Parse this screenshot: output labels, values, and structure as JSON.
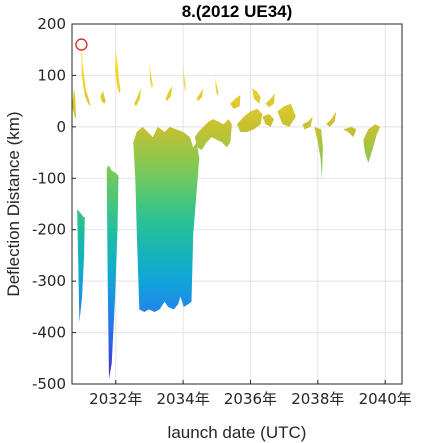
{
  "chart_data": {
    "type": "area",
    "title": "8.(2012 UE34)",
    "xlabel": "launch date (UTC)",
    "ylabel": "Deflection Distance (km)",
    "xlim": [
      2030.7,
      2040.5
    ],
    "ylim": [
      -500,
      200
    ],
    "x_ticks": [
      2032,
      2034,
      2036,
      2038,
      2040
    ],
    "x_tick_labels": [
      "2032年",
      "2034年",
      "2036年",
      "2038年",
      "2040年"
    ],
    "y_ticks": [
      200,
      100,
      0,
      -100,
      -200,
      -300,
      -400,
      -500
    ],
    "y_tick_labels": [
      "200",
      "100",
      "0",
      "-100",
      "-200",
      "-300",
      "-400",
      "-500"
    ],
    "grid": true,
    "colormap": [
      "#3e26a8",
      "#2d6ef7",
      "#11a5d9",
      "#1cbf9f",
      "#6ccb5f",
      "#c8c030",
      "#f3d52c",
      "#f9fb15"
    ],
    "color_range": [
      -500,
      200
    ],
    "segments": [
      {
        "points": [
          [
            2030.7,
            40
          ],
          [
            2030.76,
            75
          ],
          [
            2030.8,
            55
          ],
          [
            2030.82,
            15
          ],
          [
            2030.78,
            20
          ],
          [
            2030.72,
            35
          ]
        ]
      },
      {
        "points": [
          [
            2030.97,
            165
          ],
          [
            2031.02,
            120
          ],
          [
            2031.12,
            70
          ],
          [
            2031.2,
            55
          ],
          [
            2031.25,
            40
          ],
          [
            2031.18,
            45
          ],
          [
            2031.08,
            60
          ],
          [
            2030.99,
            100
          ]
        ]
      },
      {
        "points": [
          [
            2031.55,
            60
          ],
          [
            2031.62,
            70
          ],
          [
            2031.7,
            50
          ],
          [
            2031.66,
            45
          ],
          [
            2031.58,
            50
          ]
        ]
      },
      {
        "points": [
          [
            2032.0,
            150
          ],
          [
            2032.06,
            120
          ],
          [
            2032.1,
            90
          ],
          [
            2032.14,
            70
          ],
          [
            2032.1,
            65
          ],
          [
            2032.04,
            80
          ],
          [
            2031.98,
            110
          ]
        ]
      },
      {
        "points": [
          [
            2032.55,
            45
          ],
          [
            2032.65,
            60
          ],
          [
            2032.75,
            75
          ],
          [
            2032.72,
            55
          ],
          [
            2032.6,
            40
          ]
        ]
      },
      {
        "points": [
          [
            2033.0,
            125
          ],
          [
            2033.05,
            100
          ],
          [
            2033.1,
            80
          ],
          [
            2033.07,
            75
          ],
          [
            2033.02,
            90
          ]
        ]
      },
      {
        "points": [
          [
            2033.48,
            55
          ],
          [
            2033.58,
            70
          ],
          [
            2033.68,
            80
          ],
          [
            2033.64,
            60
          ],
          [
            2033.52,
            50
          ]
        ]
      },
      {
        "points": [
          [
            2034.0,
            115
          ],
          [
            2034.04,
            95
          ],
          [
            2034.08,
            75
          ],
          [
            2034.06,
            70
          ],
          [
            2034.02,
            85
          ]
        ]
      },
      {
        "points": [
          [
            2034.4,
            55
          ],
          [
            2034.5,
            65
          ],
          [
            2034.6,
            75
          ],
          [
            2034.56,
            58
          ],
          [
            2034.45,
            50
          ]
        ]
      },
      {
        "points": [
          [
            2034.95,
            95
          ],
          [
            2035.0,
            80
          ],
          [
            2035.05,
            65
          ],
          [
            2035.02,
            60
          ],
          [
            2034.97,
            72
          ]
        ]
      },
      {
        "points": [
          [
            2035.4,
            45
          ],
          [
            2035.55,
            55
          ],
          [
            2035.7,
            62
          ],
          [
            2035.68,
            40
          ],
          [
            2035.5,
            35
          ]
        ]
      },
      {
        "points": [
          [
            2036.05,
            75
          ],
          [
            2036.2,
            68
          ],
          [
            2036.3,
            58
          ],
          [
            2036.26,
            45
          ],
          [
            2036.1,
            55
          ]
        ]
      },
      {
        "points": [
          [
            2036.45,
            45
          ],
          [
            2036.6,
            55
          ],
          [
            2036.72,
            65
          ],
          [
            2036.7,
            45
          ],
          [
            2036.55,
            38
          ]
        ]
      },
      {
        "points": [
          [
            2030.85,
            -160
          ],
          [
            2030.92,
            -165
          ],
          [
            2030.98,
            -170
          ],
          [
            2031.04,
            -175
          ],
          [
            2031.08,
            -175
          ],
          [
            2031.06,
            -250
          ],
          [
            2031.0,
            -330
          ],
          [
            2030.92,
            -380
          ],
          [
            2030.88,
            -250
          ]
        ]
      },
      {
        "points": [
          [
            2031.73,
            -80
          ],
          [
            2031.8,
            -75
          ],
          [
            2031.88,
            -85
          ],
          [
            2032.0,
            -90
          ],
          [
            2032.08,
            -95
          ],
          [
            2032.05,
            -200
          ],
          [
            2031.98,
            -330
          ],
          [
            2031.88,
            -460
          ],
          [
            2031.8,
            -490
          ],
          [
            2031.76,
            -300
          ]
        ]
      },
      {
        "points": [
          [
            2032.52,
            -30
          ],
          [
            2032.62,
            -10
          ],
          [
            2032.8,
            0
          ],
          [
            2032.95,
            -10
          ],
          [
            2033.1,
            -20
          ],
          [
            2033.25,
            0
          ],
          [
            2033.45,
            -10
          ],
          [
            2033.6,
            0
          ],
          [
            2033.8,
            -5
          ],
          [
            2034.0,
            -10
          ],
          [
            2034.2,
            -20
          ],
          [
            2034.3,
            -40
          ],
          [
            2034.4,
            -30
          ],
          [
            2034.48,
            -60
          ],
          [
            2034.3,
            -210
          ],
          [
            2034.25,
            -340
          ],
          [
            2034.15,
            -345
          ],
          [
            2034.02,
            -350
          ],
          [
            2033.92,
            -330
          ],
          [
            2033.85,
            -345
          ],
          [
            2033.72,
            -355
          ],
          [
            2033.55,
            -350
          ],
          [
            2033.45,
            -340
          ],
          [
            2033.3,
            -355
          ],
          [
            2033.15,
            -360
          ],
          [
            2032.98,
            -355
          ],
          [
            2032.85,
            -360
          ],
          [
            2032.7,
            -355
          ],
          [
            2032.62,
            -200
          ],
          [
            2032.58,
            -100
          ]
        ]
      },
      {
        "points": [
          [
            2034.35,
            -20
          ],
          [
            2034.45,
            -10
          ],
          [
            2034.6,
            0
          ],
          [
            2034.75,
            10
          ],
          [
            2034.9,
            15
          ],
          [
            2035.05,
            10
          ],
          [
            2035.2,
            5
          ],
          [
            2035.35,
            15
          ],
          [
            2035.45,
            5
          ],
          [
            2035.4,
            -30
          ],
          [
            2035.3,
            -40
          ],
          [
            2035.15,
            -30
          ],
          [
            2035.0,
            -25
          ],
          [
            2034.85,
            -20
          ],
          [
            2034.7,
            -30
          ],
          [
            2034.55,
            -45
          ],
          [
            2034.42,
            -40
          ]
        ]
      },
      {
        "points": [
          [
            2035.6,
            5
          ],
          [
            2035.8,
            20
          ],
          [
            2036.0,
            30
          ],
          [
            2036.2,
            35
          ],
          [
            2036.35,
            25
          ],
          [
            2036.3,
            5
          ],
          [
            2036.1,
            -5
          ],
          [
            2035.9,
            -10
          ],
          [
            2035.7,
            -10
          ]
        ]
      },
      {
        "points": [
          [
            2036.35,
            20
          ],
          [
            2036.55,
            25
          ],
          [
            2036.7,
            15
          ],
          [
            2036.6,
            0
          ],
          [
            2036.45,
            5
          ]
        ]
      },
      {
        "points": [
          [
            2036.8,
            30
          ],
          [
            2037.0,
            40
          ],
          [
            2037.2,
            45
          ],
          [
            2037.35,
            20
          ],
          [
            2037.15,
            0
          ],
          [
            2036.95,
            5
          ]
        ]
      },
      {
        "points": [
          [
            2037.55,
            5
          ],
          [
            2037.7,
            10
          ],
          [
            2037.85,
            20
          ],
          [
            2037.78,
            0
          ],
          [
            2037.6,
            -5
          ]
        ]
      },
      {
        "points": [
          [
            2037.9,
            0
          ],
          [
            2038.0,
            -30
          ],
          [
            2038.08,
            -60
          ],
          [
            2038.12,
            -100
          ],
          [
            2038.15,
            -40
          ],
          [
            2038.1,
            -5
          ]
        ]
      },
      {
        "points": [
          [
            2038.25,
            5
          ],
          [
            2038.4,
            15
          ],
          [
            2038.55,
            30
          ],
          [
            2038.5,
            10
          ],
          [
            2038.35,
            0
          ]
        ]
      },
      {
        "points": [
          [
            2038.75,
            -5
          ],
          [
            2038.9,
            -10
          ],
          [
            2039.05,
            -20
          ],
          [
            2039.15,
            -5
          ],
          [
            2039.0,
            0
          ]
        ]
      },
      {
        "points": [
          [
            2039.35,
            -25
          ],
          [
            2039.5,
            -5
          ],
          [
            2039.7,
            5
          ],
          [
            2039.85,
            0
          ],
          [
            2039.75,
            -15
          ],
          [
            2039.62,
            -45
          ],
          [
            2039.5,
            -70
          ],
          [
            2039.4,
            -50
          ]
        ]
      }
    ],
    "markers": [
      {
        "x": 2030.98,
        "y": 160,
        "shape": "circle",
        "color": "#d62728"
      }
    ]
  }
}
